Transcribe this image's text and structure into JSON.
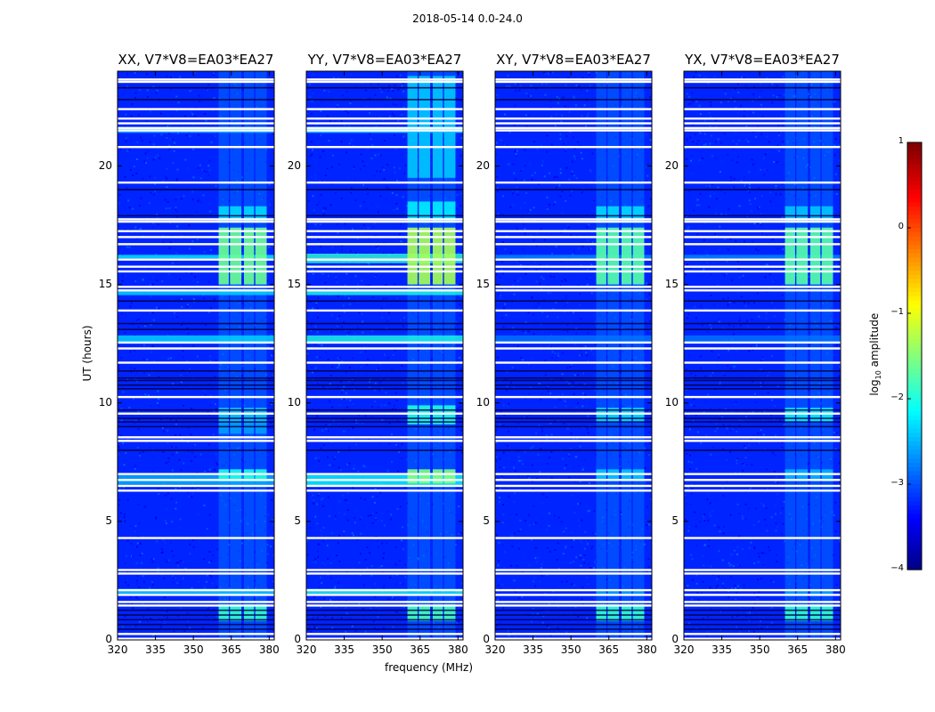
{
  "chart_data": {
    "type": "heatmap",
    "suptitle": "2018-05-14 0.0-24.0",
    "xlabel": "frequency (MHz)",
    "ylabel": "UT (hours)",
    "xlim": [
      320,
      382
    ],
    "ylim": [
      0,
      24
    ],
    "xticks": [
      320,
      335,
      350,
      365,
      380
    ],
    "xtick_labels": [
      "320",
      "335",
      "350",
      "365",
      "380"
    ],
    "yticks": [
      0,
      5,
      10,
      15,
      20
    ],
    "ytick_labels": [
      "0",
      "5",
      "10",
      "15",
      "20"
    ],
    "colorbar": {
      "label": "log10 amplitude",
      "label_main": "log",
      "label_sub": "10",
      "label_rest": " amplitude",
      "range": [
        -4,
        1
      ],
      "ticks": [
        1,
        0,
        -1,
        -2,
        -3,
        -4
      ],
      "tick_labels": [
        "1",
        "0",
        "−1",
        "−2",
        "−3",
        "−4"
      ],
      "colormap": "jet"
    },
    "background_log_amplitude": -3.2,
    "rfi_channels_mhz": [
      [
        360,
        364
      ],
      [
        364.5,
        369
      ],
      [
        370,
        374
      ],
      [
        374.5,
        379
      ]
    ],
    "blank_rows_ut": [
      0.05,
      0.25,
      1.45,
      1.6,
      1.9,
      2.1,
      2.8,
      2.95,
      4.3,
      6.3,
      6.5,
      6.75,
      7.0,
      8.4,
      8.55,
      9.55,
      10.25,
      11.7,
      12.3,
      12.55,
      13.9,
      14.75,
      14.9,
      15.55,
      15.75,
      16.05,
      16.7,
      17.0,
      17.25,
      17.65,
      17.75,
      19.3,
      20.8,
      21.5,
      21.6,
      21.8,
      22.0,
      22.4,
      23.55,
      23.65
    ],
    "dark_rows_ut": [
      0.45,
      0.65,
      0.85,
      1.05,
      1.25,
      8.0,
      9.0,
      9.2,
      9.35,
      9.7,
      10.6,
      10.75,
      10.95,
      11.05,
      11.35,
      13.1,
      13.35,
      14.3,
      17.9,
      19.0,
      22.8,
      23.3
    ],
    "panels": [
      {
        "title": "XX, V7*V8=EA03*EA27",
        "bright_bands": [
          {
            "ut": [
              15.0,
              17.4
            ],
            "log_amplitude": -1.6
          },
          {
            "ut": [
              0.8,
              1.5
            ],
            "log_amplitude": -1.9
          },
          {
            "ut": [
              6.7,
              7.2
            ],
            "log_amplitude": -2.0
          },
          {
            "ut": [
              17.7,
              18.3
            ],
            "log_amplitude": -2.3
          },
          {
            "ut": [
              9.2,
              9.8
            ],
            "log_amplitude": -2.4
          },
          {
            "ut": [
              8.7,
              9.2
            ],
            "log_amplitude": -2.6
          },
          {
            "ut": [
              1.9,
              2.1
            ],
            "log_amplitude": -2.5
          }
        ],
        "wide_bands": [
          {
            "ut": [
              12.5,
              12.85
            ],
            "log_amplitude": -2.3
          },
          {
            "ut": [
              6.55,
              6.95
            ],
            "log_amplitude": -2.5
          },
          {
            "ut": [
              16.1,
              16.25
            ],
            "log_amplitude": -2.2
          },
          {
            "ut": [
              21.4,
              21.65
            ],
            "log_amplitude": -2.4
          },
          {
            "ut": [
              1.95,
              2.15
            ],
            "log_amplitude": -2.3
          },
          {
            "ut": [
              14.55,
              14.75
            ],
            "log_amplitude": -2.3
          }
        ]
      },
      {
        "title": "YY, V7*V8=EA03*EA27",
        "bright_bands": [
          {
            "ut": [
              15.0,
              17.4
            ],
            "log_amplitude": -1.3
          },
          {
            "ut": [
              19.5,
              23.8
            ],
            "log_amplitude": -2.4
          },
          {
            "ut": [
              0.8,
              1.5
            ],
            "log_amplitude": -1.8
          },
          {
            "ut": [
              6.6,
              7.2
            ],
            "log_amplitude": -1.5
          },
          {
            "ut": [
              9.1,
              9.9
            ],
            "log_amplitude": -2.0
          },
          {
            "ut": [
              17.7,
              18.5
            ],
            "log_amplitude": -2.2
          },
          {
            "ut": [
              1.9,
              2.1
            ],
            "log_amplitude": -2.4
          }
        ],
        "wide_bands": [
          {
            "ut": [
              12.5,
              12.85
            ],
            "log_amplitude": -2.0
          },
          {
            "ut": [
              6.5,
              6.95
            ],
            "log_amplitude": -2.1
          },
          {
            "ut": [
              15.9,
              16.3
            ],
            "log_amplitude": -1.9
          },
          {
            "ut": [
              21.4,
              21.65
            ],
            "log_amplitude": -2.2
          },
          {
            "ut": [
              1.95,
              2.15
            ],
            "log_amplitude": -2.0
          },
          {
            "ut": [
              14.55,
              14.75
            ],
            "log_amplitude": -2.0
          }
        ]
      },
      {
        "title": "XY, V7*V8=EA03*EA27",
        "bright_bands": [
          {
            "ut": [
              15.0,
              17.4
            ],
            "log_amplitude": -1.7
          },
          {
            "ut": [
              0.8,
              1.5
            ],
            "log_amplitude": -1.9
          },
          {
            "ut": [
              9.2,
              9.8
            ],
            "log_amplitude": -2.3
          },
          {
            "ut": [
              17.7,
              18.3
            ],
            "log_amplitude": -2.3
          },
          {
            "ut": [
              6.7,
              7.2
            ],
            "log_amplitude": -2.4
          },
          {
            "ut": [
              1.9,
              2.1
            ],
            "log_amplitude": -2.6
          }
        ],
        "wide_bands": [
          {
            "ut": [
              12.5,
              12.85
            ],
            "log_amplitude": -2.8
          },
          {
            "ut": [
              16.1,
              16.25
            ],
            "log_amplitude": -2.7
          }
        ]
      },
      {
        "title": "YX, V7*V8=EA03*EA27",
        "bright_bands": [
          {
            "ut": [
              15.0,
              17.4
            ],
            "log_amplitude": -1.7
          },
          {
            "ut": [
              0.8,
              1.5
            ],
            "log_amplitude": -1.9
          },
          {
            "ut": [
              9.2,
              9.8
            ],
            "log_amplitude": -2.2
          },
          {
            "ut": [
              17.7,
              18.3
            ],
            "log_amplitude": -2.4
          },
          {
            "ut": [
              6.7,
              7.2
            ],
            "log_amplitude": -2.5
          },
          {
            "ut": [
              1.9,
              2.1
            ],
            "log_amplitude": -2.6
          }
        ],
        "wide_bands": [
          {
            "ut": [
              12.5,
              12.85
            ],
            "log_amplitude": -2.8
          },
          {
            "ut": [
              16.1,
              16.25
            ],
            "log_amplitude": -2.7
          }
        ]
      }
    ]
  }
}
